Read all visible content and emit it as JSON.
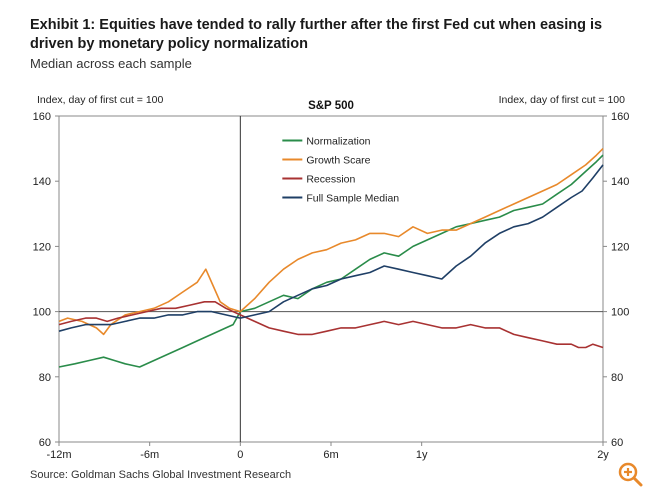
{
  "header": {
    "title": "Exhibit 1: Equities have tended to rally further after the first Fed cut when easing is driven by monetary policy normalization",
    "subtitle": "Median across each sample"
  },
  "footer": {
    "source": "Source: Goldman Sachs Global Investment Research"
  },
  "icons": {
    "zoom": "zoom-in-icon"
  },
  "colors": {
    "normalization": "#2a8c4a",
    "growth_scare": "#e8892b",
    "recession": "#a83232",
    "full_sample": "#1f3f66",
    "zoom": "#e8892b"
  },
  "chart_data": {
    "type": "line",
    "title": "S&P 500",
    "ylabel_left": "Index, day of first cut = 100",
    "ylabel_right": "Index, day of first cut = 100",
    "ylim": [
      60,
      160
    ],
    "yticks": [
      60,
      80,
      100,
      120,
      140,
      160
    ],
    "xlim": [
      -252,
      504
    ],
    "xticks": [
      {
        "value": -252,
        "label": "-12m"
      },
      {
        "value": -126,
        "label": "-6m"
      },
      {
        "value": 0,
        "label": "0"
      },
      {
        "value": 126,
        "label": "6m"
      },
      {
        "value": 252,
        "label": "1y"
      },
      {
        "value": 504,
        "label": "2y"
      }
    ],
    "reference_lines": {
      "x": 0,
      "y": 100
    },
    "legend_position": "top-center",
    "series": [
      {
        "name": "Normalization",
        "color": "#2a8c4a",
        "points": [
          [
            -252,
            83
          ],
          [
            -230,
            84
          ],
          [
            -210,
            85
          ],
          [
            -190,
            86
          ],
          [
            -175,
            85
          ],
          [
            -160,
            84
          ],
          [
            -140,
            83
          ],
          [
            -120,
            85
          ],
          [
            -100,
            87
          ],
          [
            -80,
            89
          ],
          [
            -60,
            91
          ],
          [
            -40,
            93
          ],
          [
            -20,
            95
          ],
          [
            -10,
            96
          ],
          [
            0,
            100
          ],
          [
            20,
            101
          ],
          [
            40,
            103
          ],
          [
            60,
            105
          ],
          [
            80,
            104
          ],
          [
            100,
            107
          ],
          [
            120,
            109
          ],
          [
            140,
            110
          ],
          [
            160,
            113
          ],
          [
            180,
            116
          ],
          [
            200,
            118
          ],
          [
            220,
            117
          ],
          [
            240,
            120
          ],
          [
            260,
            122
          ],
          [
            280,
            124
          ],
          [
            300,
            126
          ],
          [
            320,
            127
          ],
          [
            340,
            128
          ],
          [
            360,
            129
          ],
          [
            380,
            131
          ],
          [
            400,
            132
          ],
          [
            420,
            133
          ],
          [
            440,
            136
          ],
          [
            460,
            139
          ],
          [
            480,
            143
          ],
          [
            495,
            146
          ],
          [
            504,
            148
          ]
        ]
      },
      {
        "name": "Growth Scare",
        "color": "#e8892b",
        "points": [
          [
            -252,
            97
          ],
          [
            -240,
            98
          ],
          [
            -220,
            97
          ],
          [
            -200,
            95
          ],
          [
            -190,
            93
          ],
          [
            -180,
            96
          ],
          [
            -160,
            99
          ],
          [
            -140,
            100
          ],
          [
            -120,
            101
          ],
          [
            -100,
            103
          ],
          [
            -80,
            106
          ],
          [
            -60,
            109
          ],
          [
            -48,
            113
          ],
          [
            -38,
            108
          ],
          [
            -28,
            103
          ],
          [
            -15,
            101
          ],
          [
            0,
            100
          ],
          [
            20,
            104
          ],
          [
            40,
            109
          ],
          [
            60,
            113
          ],
          [
            80,
            116
          ],
          [
            100,
            118
          ],
          [
            120,
            119
          ],
          [
            140,
            121
          ],
          [
            160,
            122
          ],
          [
            180,
            124
          ],
          [
            200,
            124
          ],
          [
            220,
            123
          ],
          [
            240,
            126
          ],
          [
            260,
            124
          ],
          [
            280,
            125
          ],
          [
            300,
            125
          ],
          [
            320,
            127
          ],
          [
            340,
            129
          ],
          [
            360,
            131
          ],
          [
            380,
            133
          ],
          [
            400,
            135
          ],
          [
            420,
            137
          ],
          [
            440,
            139
          ],
          [
            460,
            142
          ],
          [
            480,
            145
          ],
          [
            495,
            148
          ],
          [
            504,
            150
          ]
        ]
      },
      {
        "name": "Recession",
        "color": "#a83232",
        "points": [
          [
            -252,
            96
          ],
          [
            -235,
            97
          ],
          [
            -215,
            98
          ],
          [
            -200,
            98
          ],
          [
            -185,
            97
          ],
          [
            -170,
            98
          ],
          [
            -150,
            99
          ],
          [
            -130,
            100
          ],
          [
            -110,
            101
          ],
          [
            -90,
            101
          ],
          [
            -70,
            102
          ],
          [
            -50,
            103
          ],
          [
            -35,
            103
          ],
          [
            -20,
            101
          ],
          [
            0,
            99
          ],
          [
            20,
            97
          ],
          [
            40,
            95
          ],
          [
            60,
            94
          ],
          [
            80,
            93
          ],
          [
            100,
            93
          ],
          [
            120,
            94
          ],
          [
            140,
            95
          ],
          [
            160,
            95
          ],
          [
            180,
            96
          ],
          [
            200,
            97
          ],
          [
            220,
            96
          ],
          [
            240,
            97
          ],
          [
            260,
            96
          ],
          [
            280,
            95
          ],
          [
            300,
            95
          ],
          [
            320,
            96
          ],
          [
            340,
            95
          ],
          [
            360,
            95
          ],
          [
            380,
            93
          ],
          [
            400,
            92
          ],
          [
            420,
            91
          ],
          [
            440,
            90
          ],
          [
            460,
            90
          ],
          [
            470,
            89
          ],
          [
            480,
            89
          ],
          [
            490,
            90
          ],
          [
            504,
            89
          ]
        ]
      },
      {
        "name": "Full Sample Median",
        "color": "#1f3f66",
        "points": [
          [
            -252,
            94
          ],
          [
            -235,
            95
          ],
          [
            -215,
            96
          ],
          [
            -200,
            96
          ],
          [
            -180,
            96
          ],
          [
            -160,
            97
          ],
          [
            -140,
            98
          ],
          [
            -120,
            98
          ],
          [
            -100,
            99
          ],
          [
            -80,
            99
          ],
          [
            -60,
            100
          ],
          [
            -40,
            100
          ],
          [
            -20,
            99
          ],
          [
            0,
            98
          ],
          [
            20,
            99
          ],
          [
            40,
            100
          ],
          [
            60,
            103
          ],
          [
            80,
            105
          ],
          [
            100,
            107
          ],
          [
            120,
            108
          ],
          [
            140,
            110
          ],
          [
            160,
            111
          ],
          [
            180,
            112
          ],
          [
            200,
            114
          ],
          [
            220,
            113
          ],
          [
            240,
            112
          ],
          [
            260,
            111
          ],
          [
            280,
            110
          ],
          [
            300,
            114
          ],
          [
            320,
            117
          ],
          [
            340,
            121
          ],
          [
            360,
            124
          ],
          [
            380,
            126
          ],
          [
            400,
            127
          ],
          [
            420,
            129
          ],
          [
            440,
            132
          ],
          [
            460,
            135
          ],
          [
            475,
            137
          ],
          [
            490,
            141
          ],
          [
            504,
            145
          ]
        ]
      }
    ]
  }
}
